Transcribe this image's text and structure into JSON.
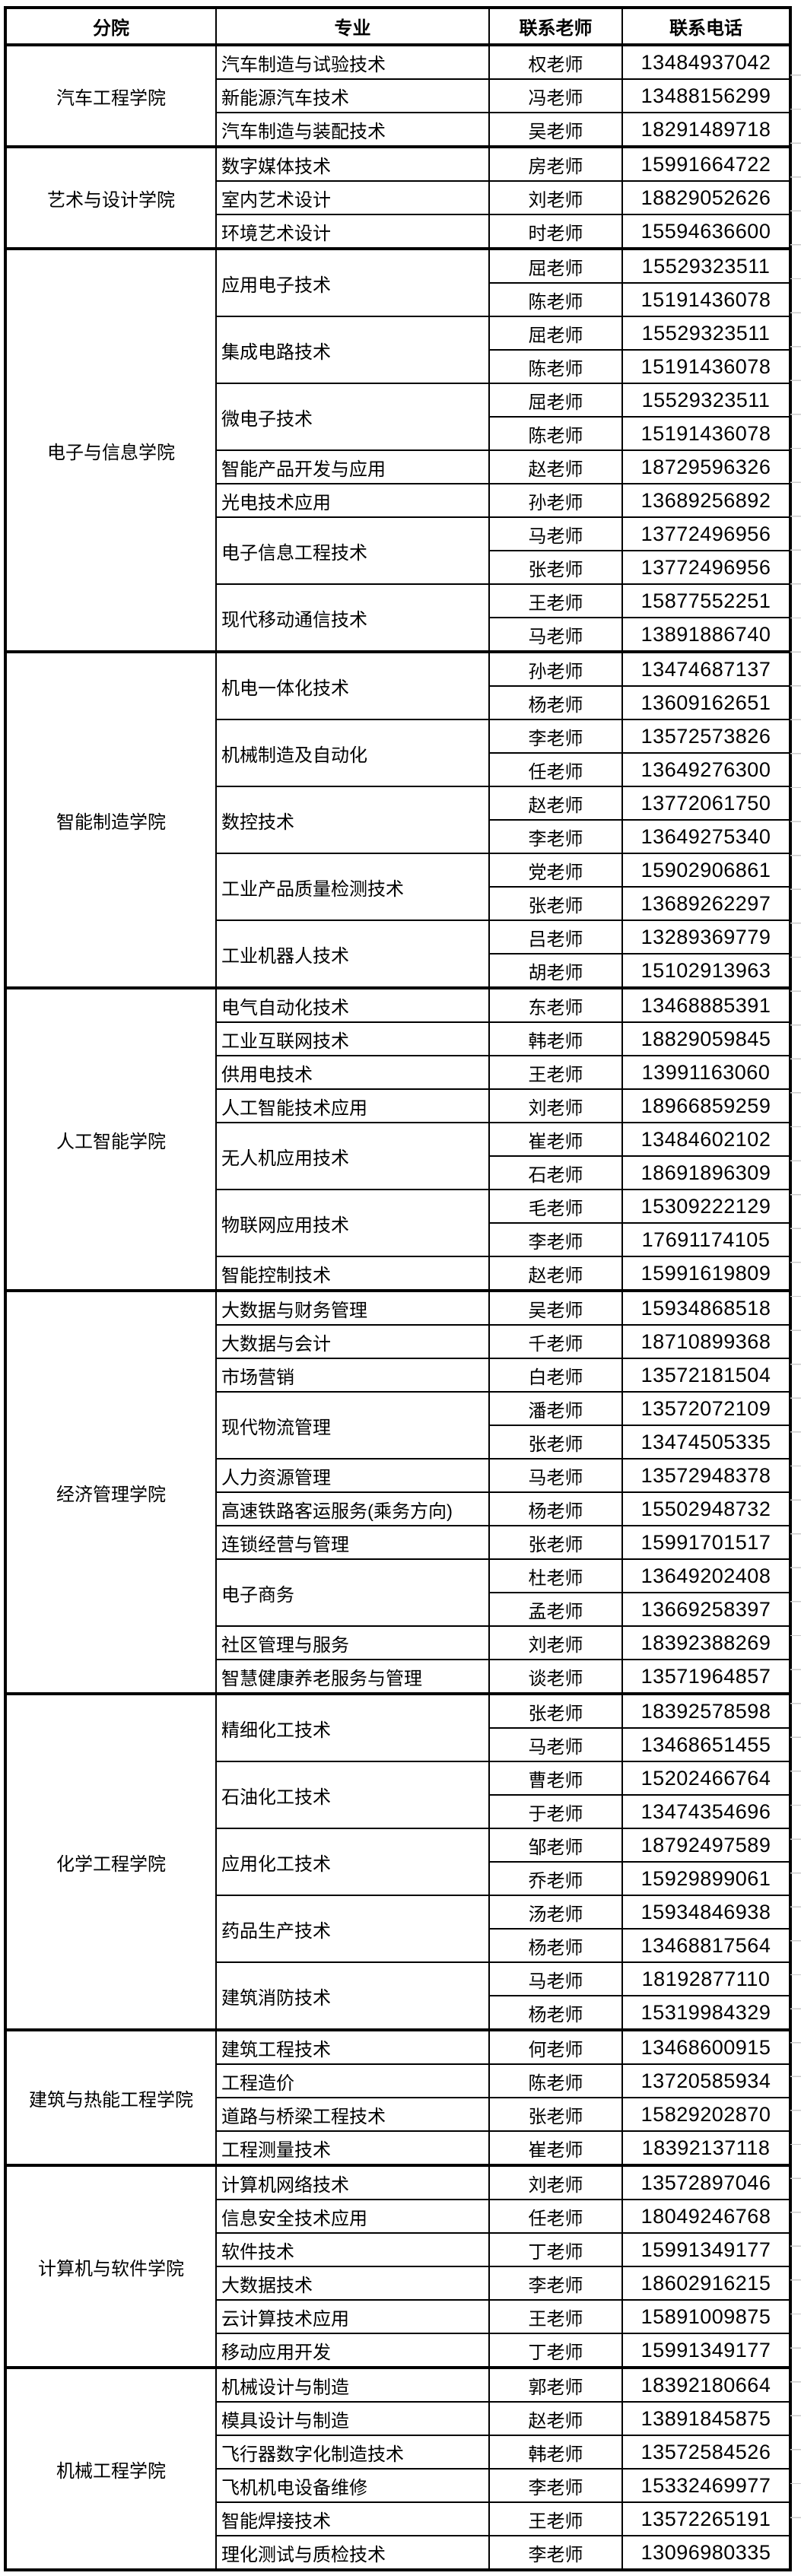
{
  "colors": {
    "border": "#000000",
    "text": "#000000",
    "background": "#ffffff",
    "gridline_stub": "#cccccc"
  },
  "table": {
    "headers": {
      "college": "分院",
      "major": "专业",
      "teacher": "联系老师",
      "phone": "联系电话"
    },
    "colleges": [
      {
        "name": "汽车工程学院",
        "majors": [
          {
            "name": "汽车制造与试验技术",
            "contacts": [
              {
                "teacher": "权老师",
                "phone": "13484937042"
              }
            ]
          },
          {
            "name": "新能源汽车技术",
            "contacts": [
              {
                "teacher": "冯老师",
                "phone": "13488156299"
              }
            ]
          },
          {
            "name": "汽车制造与装配技术",
            "contacts": [
              {
                "teacher": "吴老师",
                "phone": "18291489718"
              }
            ]
          }
        ]
      },
      {
        "name": "艺术与设计学院",
        "majors": [
          {
            "name": "数字媒体技术",
            "contacts": [
              {
                "teacher": "房老师",
                "phone": "15991664722"
              }
            ]
          },
          {
            "name": "室内艺术设计",
            "contacts": [
              {
                "teacher": "刘老师",
                "phone": "18829052626"
              }
            ]
          },
          {
            "name": "环境艺术设计",
            "contacts": [
              {
                "teacher": "时老师",
                "phone": "15594636600"
              }
            ]
          }
        ]
      },
      {
        "name": "电子与信息学院",
        "majors": [
          {
            "name": "应用电子技术",
            "contacts": [
              {
                "teacher": "屈老师",
                "phone": "15529323511"
              },
              {
                "teacher": "陈老师",
                "phone": "15191436078"
              }
            ]
          },
          {
            "name": "集成电路技术",
            "contacts": [
              {
                "teacher": "屈老师",
                "phone": "15529323511"
              },
              {
                "teacher": "陈老师",
                "phone": "15191436078"
              }
            ]
          },
          {
            "name": "微电子技术",
            "contacts": [
              {
                "teacher": "屈老师",
                "phone": "15529323511"
              },
              {
                "teacher": "陈老师",
                "phone": "15191436078"
              }
            ]
          },
          {
            "name": "智能产品开发与应用",
            "contacts": [
              {
                "teacher": "赵老师",
                "phone": "18729596326"
              }
            ]
          },
          {
            "name": "光电技术应用",
            "contacts": [
              {
                "teacher": "孙老师",
                "phone": "13689256892"
              }
            ]
          },
          {
            "name": "电子信息工程技术",
            "contacts": [
              {
                "teacher": "马老师",
                "phone": "13772496956"
              },
              {
                "teacher": "张老师",
                "phone": "13772496956"
              }
            ]
          },
          {
            "name": "现代移动通信技术",
            "contacts": [
              {
                "teacher": "王老师",
                "phone": "15877552251"
              },
              {
                "teacher": "马老师",
                "phone": "13891886740"
              }
            ]
          }
        ]
      },
      {
        "name": "智能制造学院",
        "majors": [
          {
            "name": "机电一体化技术",
            "contacts": [
              {
                "teacher": "孙老师",
                "phone": "13474687137"
              },
              {
                "teacher": "杨老师",
                "phone": "13609162651"
              }
            ]
          },
          {
            "name": "机械制造及自动化",
            "contacts": [
              {
                "teacher": "李老师",
                "phone": "13572573826"
              },
              {
                "teacher": "任老师",
                "phone": "13649276300"
              }
            ]
          },
          {
            "name": "数控技术",
            "contacts": [
              {
                "teacher": "赵老师",
                "phone": "13772061750"
              },
              {
                "teacher": "李老师",
                "phone": "13649275340"
              }
            ]
          },
          {
            "name": "工业产品质量检测技术",
            "contacts": [
              {
                "teacher": "党老师",
                "phone": "15902906861"
              },
              {
                "teacher": "张老师",
                "phone": "13689262297"
              }
            ]
          },
          {
            "name": "工业机器人技术",
            "contacts": [
              {
                "teacher": "吕老师",
                "phone": "13289369779"
              },
              {
                "teacher": "胡老师",
                "phone": "15102913963"
              }
            ]
          }
        ]
      },
      {
        "name": "人工智能学院",
        "majors": [
          {
            "name": "电气自动化技术",
            "contacts": [
              {
                "teacher": "东老师",
                "phone": "13468885391"
              }
            ]
          },
          {
            "name": "工业互联网技术",
            "contacts": [
              {
                "teacher": "韩老师",
                "phone": "18829059845"
              }
            ]
          },
          {
            "name": "供用电技术",
            "contacts": [
              {
                "teacher": "王老师",
                "phone": "13991163060"
              }
            ]
          },
          {
            "name": "人工智能技术应用",
            "contacts": [
              {
                "teacher": "刘老师",
                "phone": "18966859259"
              }
            ]
          },
          {
            "name": "无人机应用技术",
            "contacts": [
              {
                "teacher": "崔老师",
                "phone": "13484602102"
              },
              {
                "teacher": "石老师",
                "phone": "18691896309"
              }
            ]
          },
          {
            "name": "物联网应用技术",
            "contacts": [
              {
                "teacher": "毛老师",
                "phone": "15309222129"
              },
              {
                "teacher": "李老师",
                "phone": "17691174105"
              }
            ]
          },
          {
            "name": "智能控制技术",
            "contacts": [
              {
                "teacher": "赵老师",
                "phone": "15991619809"
              }
            ]
          }
        ]
      },
      {
        "name": "经济管理学院",
        "majors": [
          {
            "name": "大数据与财务管理",
            "contacts": [
              {
                "teacher": "吴老师",
                "phone": "15934868518"
              }
            ]
          },
          {
            "name": "大数据与会计",
            "contacts": [
              {
                "teacher": "千老师",
                "phone": "18710899368"
              }
            ]
          },
          {
            "name": "市场营销",
            "contacts": [
              {
                "teacher": "白老师",
                "phone": "13572181504"
              }
            ]
          },
          {
            "name": "现代物流管理",
            "contacts": [
              {
                "teacher": "潘老师",
                "phone": "13572072109"
              },
              {
                "teacher": "张老师",
                "phone": "13474505335"
              }
            ]
          },
          {
            "name": "人力资源管理",
            "contacts": [
              {
                "teacher": "马老师",
                "phone": "13572948378"
              }
            ]
          },
          {
            "name": "高速铁路客运服务(乘务方向)",
            "contacts": [
              {
                "teacher": "杨老师",
                "phone": "15502948732"
              }
            ]
          },
          {
            "name": "连锁经营与管理",
            "contacts": [
              {
                "teacher": "张老师",
                "phone": "15991701517"
              }
            ]
          },
          {
            "name": "电子商务",
            "contacts": [
              {
                "teacher": "杜老师",
                "phone": "13649202408"
              },
              {
                "teacher": "孟老师",
                "phone": "13669258397"
              }
            ]
          },
          {
            "name": "社区管理与服务",
            "contacts": [
              {
                "teacher": "刘老师",
                "phone": "18392388269"
              }
            ]
          },
          {
            "name": "智慧健康养老服务与管理",
            "contacts": [
              {
                "teacher": "谈老师",
                "phone": "13571964857"
              }
            ]
          }
        ]
      },
      {
        "name": "化学工程学院",
        "majors": [
          {
            "name": "精细化工技术",
            "contacts": [
              {
                "teacher": "张老师",
                "phone": "18392578598"
              },
              {
                "teacher": "马老师",
                "phone": "13468651455"
              }
            ]
          },
          {
            "name": "石油化工技术",
            "contacts": [
              {
                "teacher": "曹老师",
                "phone": "15202466764"
              },
              {
                "teacher": "于老师",
                "phone": "13474354696"
              }
            ]
          },
          {
            "name": "应用化工技术",
            "contacts": [
              {
                "teacher": "邹老师",
                "phone": "18792497589"
              },
              {
                "teacher": "乔老师",
                "phone": "15929899061"
              }
            ]
          },
          {
            "name": "药品生产技术",
            "contacts": [
              {
                "teacher": "汤老师",
                "phone": "15934846938"
              },
              {
                "teacher": "杨老师",
                "phone": "13468817564"
              }
            ]
          },
          {
            "name": "建筑消防技术",
            "contacts": [
              {
                "teacher": "马老师",
                "phone": "18192877110"
              },
              {
                "teacher": "杨老师",
                "phone": "15319984329"
              }
            ]
          }
        ]
      },
      {
        "name": "建筑与热能工程学院",
        "majors": [
          {
            "name": "建筑工程技术",
            "contacts": [
              {
                "teacher": "何老师",
                "phone": "13468600915"
              }
            ]
          },
          {
            "name": "工程造价",
            "contacts": [
              {
                "teacher": "陈老师",
                "phone": "13720585934"
              }
            ]
          },
          {
            "name": "道路与桥梁工程技术",
            "contacts": [
              {
                "teacher": "张老师",
                "phone": "15829202870"
              }
            ]
          },
          {
            "name": "工程测量技术",
            "contacts": [
              {
                "teacher": "崔老师",
                "phone": "18392137118"
              }
            ]
          }
        ]
      },
      {
        "name": "计算机与软件学院",
        "majors": [
          {
            "name": "计算机网络技术",
            "contacts": [
              {
                "teacher": "刘老师",
                "phone": "13572897046"
              }
            ]
          },
          {
            "name": "信息安全技术应用",
            "contacts": [
              {
                "teacher": "任老师",
                "phone": "18049246768"
              }
            ]
          },
          {
            "name": "软件技术",
            "contacts": [
              {
                "teacher": "丁老师",
                "phone": "15991349177"
              }
            ]
          },
          {
            "name": "大数据技术",
            "contacts": [
              {
                "teacher": "李老师",
                "phone": "18602916215"
              }
            ]
          },
          {
            "name": "云计算技术应用",
            "contacts": [
              {
                "teacher": "王老师",
                "phone": "15891009875"
              }
            ]
          },
          {
            "name": "移动应用开发",
            "contacts": [
              {
                "teacher": "丁老师",
                "phone": "15991349177"
              }
            ]
          }
        ]
      },
      {
        "name": "机械工程学院",
        "majors": [
          {
            "name": "机械设计与制造",
            "contacts": [
              {
                "teacher": "郭老师",
                "phone": "18392180664"
              }
            ]
          },
          {
            "name": "模具设计与制造",
            "contacts": [
              {
                "teacher": "赵老师",
                "phone": "13891845875"
              }
            ]
          },
          {
            "name": "飞行器数字化制造技术",
            "contacts": [
              {
                "teacher": "韩老师",
                "phone": "13572584526"
              }
            ]
          },
          {
            "name": "飞机机电设备维修",
            "contacts": [
              {
                "teacher": "李老师",
                "phone": "15332469977"
              }
            ]
          },
          {
            "name": "智能焊接技术",
            "contacts": [
              {
                "teacher": "王老师",
                "phone": "13572265191"
              }
            ]
          },
          {
            "name": "理化测试与质检技术",
            "contacts": [
              {
                "teacher": "李老师",
                "phone": "13096980335"
              }
            ]
          }
        ]
      }
    ]
  }
}
